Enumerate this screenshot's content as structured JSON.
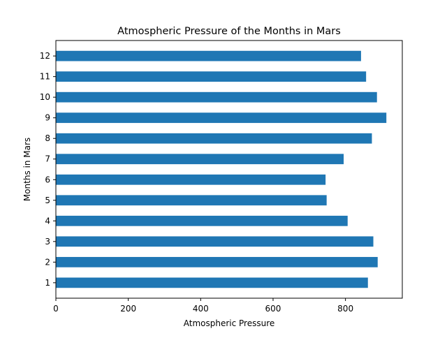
{
  "chart_data": {
    "type": "bar",
    "orientation": "horizontal",
    "title": "Atmospheric Pressure of the Months in Mars",
    "xlabel": "Atmospheric Pressure",
    "ylabel": "Months in Mars",
    "categories": [
      "1",
      "2",
      "3",
      "4",
      "5",
      "6",
      "7",
      "8",
      "9",
      "10",
      "11",
      "12"
    ],
    "values": [
      862,
      889,
      877,
      806,
      748,
      745,
      795,
      873,
      913,
      887,
      857,
      843
    ],
    "xlim": [
      0,
      957
    ],
    "xticks": [
      "0",
      "200",
      "400",
      "600",
      "800"
    ],
    "grid": false,
    "legend": "none",
    "bar_color": "#1f77b4"
  }
}
